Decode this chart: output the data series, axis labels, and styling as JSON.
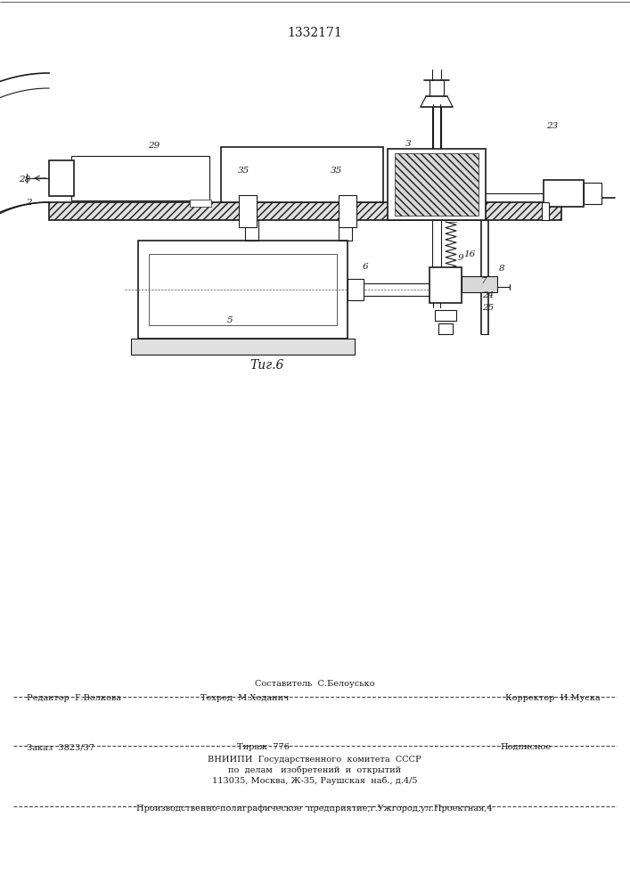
{
  "title": "1332171",
  "fig_label": "Τиг.6",
  "background": "#ffffff",
  "line_color": "#1a1a1a",
  "footer": {
    "line1_center": "Составитель  С.Белоусько",
    "line2_left": "Редактор  Г.Волкова",
    "line2_center": "Техред  М.Ходанич",
    "line2_right": "Корректор  И.Муска",
    "line3_left": "Заказ  3823/37",
    "line3_center": "Тираж  776",
    "line3_right": "Подписное",
    "line4": "ВНИИПИ  Государственного  комитета  СССР",
    "line5": "по  делам   изобретений  и  открытий",
    "line6": "113035, Москва, Ж-35, Раушская  наб., д.4/5",
    "line7": "Производственно-полиграфическое  предприятие,г.Ужгород,ул.Проектная,4"
  }
}
